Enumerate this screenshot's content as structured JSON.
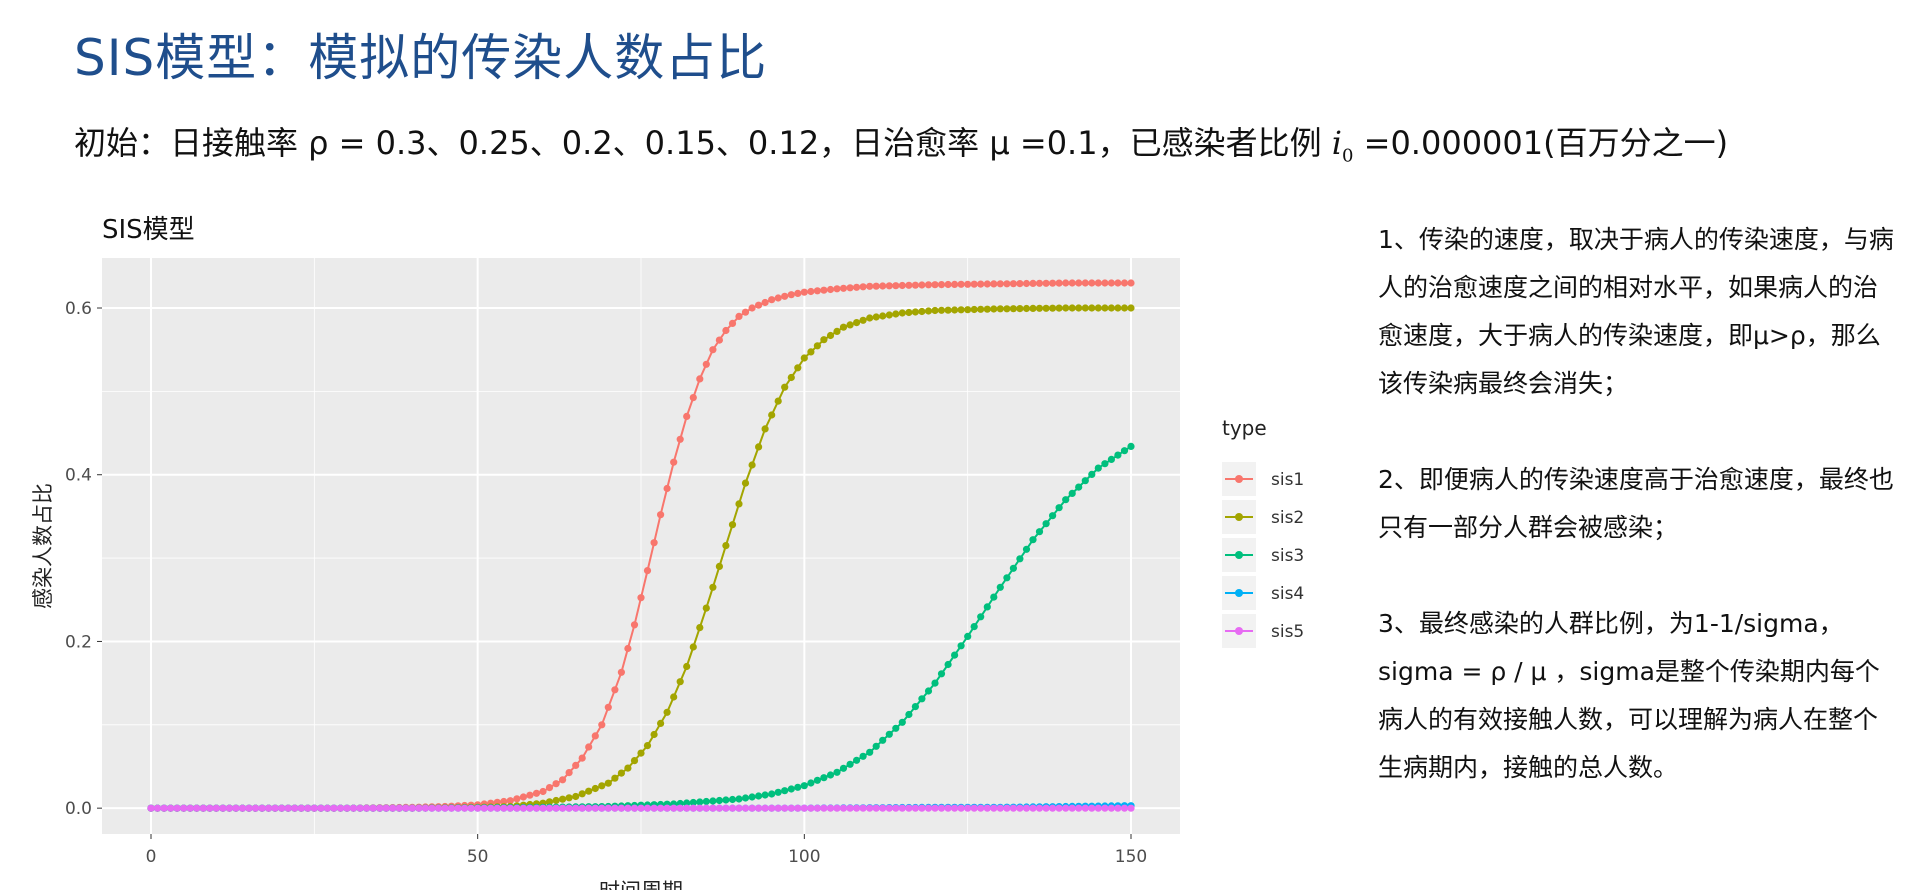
{
  "slide": {
    "title": "SIS模型：模拟的传染人数占比",
    "subtitle_prefix": "初始：日接触率 ρ = 0.3、0.25、0.2、0.15、0.12，日治愈率 μ =0.1，已感染者比例 ",
    "subtitle_var": "i",
    "subtitle_var_sub": "0",
    "subtitle_suffix": " =0.000001(百万分之一)"
  },
  "notes": [
    "1、传染的速度，取决于病人的传染速度，与病人的治愈速度之间的相对水平，如果病人的治愈速度，大于病人的传染速度，即μ>ρ，那么该传染病最终会消失；",
    "2、即便病人的传染速度高于治愈速度，最终也只有一部分人群会被感染；",
    "3、最终感染的人群比例，为1-1/sigma，sigma = ρ / μ ，sigma是整个传染期内每个病人的有效接触人数，可以理解为病人在整个生病期内，接触的总人数。"
  ],
  "chart_data": {
    "type": "line",
    "title": "SIS模型",
    "xlabel": "时间周期",
    "ylabel": "感染人数占比",
    "xlim": [
      -7.5,
      157.5
    ],
    "ylim": [
      -0.031,
      0.66
    ],
    "x_ticks": [
      0,
      50,
      100,
      150
    ],
    "x_tick_labels": [
      "0",
      "50",
      "100",
      "150"
    ],
    "y_ticks": [
      0.0,
      0.2,
      0.4,
      0.6
    ],
    "y_tick_labels": [
      "0.0",
      "0.2",
      "0.4",
      "0.6"
    ],
    "grid": true,
    "markers": true,
    "legend": {
      "title": "type",
      "position": "right"
    },
    "series": [
      {
        "name": "sis1",
        "color": "#F8766D",
        "x": [
          0,
          10,
          20,
          30,
          40,
          45,
          50,
          55,
          60,
          63,
          66,
          69,
          72,
          74,
          76,
          78,
          80,
          82,
          84,
          86,
          88,
          90,
          92,
          95,
          98,
          100,
          105,
          110,
          120,
          130,
          140,
          150
        ],
        "y": [
          0.0,
          0.0,
          0.0,
          0.0,
          0.001,
          0.002,
          0.004,
          0.009,
          0.02,
          0.034,
          0.06,
          0.1,
          0.163,
          0.22,
          0.285,
          0.352,
          0.415,
          0.47,
          0.515,
          0.55,
          0.573,
          0.59,
          0.6,
          0.61,
          0.616,
          0.619,
          0.623,
          0.626,
          0.628,
          0.629,
          0.63,
          0.63
        ]
      },
      {
        "name": "sis2",
        "color": "#A3A500",
        "x": [
          0,
          10,
          20,
          30,
          40,
          50,
          55,
          60,
          65,
          70,
          73,
          76,
          79,
          82,
          85,
          88,
          91,
          94,
          97,
          100,
          103,
          106,
          110,
          115,
          120,
          130,
          140,
          150
        ],
        "y": [
          0.0,
          0.0,
          0.0,
          0.0,
          0.0,
          0.001,
          0.002,
          0.006,
          0.014,
          0.03,
          0.048,
          0.075,
          0.115,
          0.17,
          0.24,
          0.315,
          0.39,
          0.455,
          0.505,
          0.54,
          0.562,
          0.577,
          0.588,
          0.594,
          0.597,
          0.599,
          0.6,
          0.6
        ]
      },
      {
        "name": "sis3",
        "color": "#00BF7D",
        "x": [
          0,
          20,
          40,
          60,
          70,
          80,
          90,
          95,
          100,
          105,
          110,
          115,
          120,
          125,
          130,
          135,
          140,
          145,
          150
        ],
        "y": [
          0.0,
          0.0,
          0.0,
          0.001,
          0.002,
          0.005,
          0.011,
          0.017,
          0.027,
          0.043,
          0.067,
          0.103,
          0.15,
          0.206,
          0.265,
          0.322,
          0.37,
          0.408,
          0.434
        ]
      },
      {
        "name": "sis4",
        "color": "#00B0F6",
        "x": [
          0,
          50,
          100,
          120,
          130,
          140,
          150
        ],
        "y": [
          0.0,
          0.0,
          0.0,
          0.001,
          0.001,
          0.002,
          0.003
        ]
      },
      {
        "name": "sis5",
        "color": "#E76BF3",
        "x": [
          0,
          50,
          100,
          150
        ],
        "y": [
          0.0,
          0.0,
          0.0,
          0.0
        ]
      }
    ]
  }
}
